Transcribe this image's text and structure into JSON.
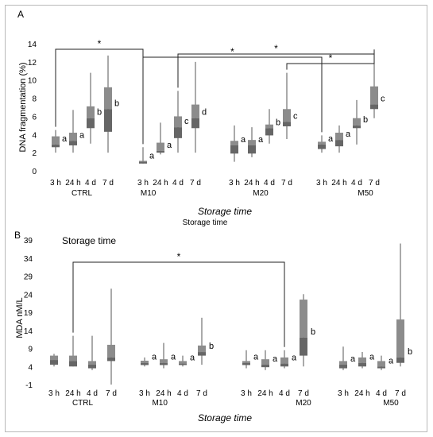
{
  "chart_data": [
    {
      "panel_label": "A",
      "type": "box",
      "ylabel": "DNA fragmentation (%)",
      "xlabel": "Storage time",
      "subtitle_below": "Storage time",
      "ylim": [
        0,
        14
      ],
      "yticks": [
        0,
        2,
        4,
        6,
        8,
        10,
        12,
        14
      ],
      "groups": [
        "CTRL",
        "M10",
        "M20",
        "M50"
      ],
      "timepoints": [
        "3 h",
        "24 h",
        "4 d",
        "7 d"
      ],
      "colors": {
        "box": "#8c8c8c",
        "box_dark": "#666666",
        "whisker": "#555555"
      },
      "boxes": [
        {
          "group": "CTRL",
          "time": "3 h",
          "min": 2.0,
          "q1": 2.6,
          "median": 2.9,
          "q3": 3.8,
          "max": 4.5,
          "letter": "a"
        },
        {
          "group": "CTRL",
          "time": "24 h",
          "min": 2.0,
          "q1": 2.8,
          "median": 3.3,
          "q3": 4.2,
          "max": 6.7,
          "letter": "a"
        },
        {
          "group": "CTRL",
          "time": "4 d",
          "min": 3.0,
          "q1": 4.7,
          "median": 5.8,
          "q3": 7.1,
          "max": 10.8,
          "letter": "b"
        },
        {
          "group": "CTRL",
          "time": "7 d",
          "min": 2.0,
          "q1": 4.3,
          "median": 6.8,
          "q3": 9.2,
          "max": 12.7,
          "letter": "b"
        },
        {
          "group": "M10",
          "time": "3 h",
          "min": 0.8,
          "q1": 0.8,
          "median": 1.0,
          "q3": 1.1,
          "max": 2.6,
          "letter": "a"
        },
        {
          "group": "M10",
          "time": "24 h",
          "min": 1.8,
          "q1": 2.0,
          "median": 2.2,
          "q3": 3.1,
          "max": 5.3,
          "letter": "a"
        },
        {
          "group": "M10",
          "time": "4 d",
          "min": 2.0,
          "q1": 3.6,
          "median": 4.8,
          "q3": 6.0,
          "max": 8.8,
          "letter": "c"
        },
        {
          "group": "M10",
          "time": "7 d",
          "min": 2.0,
          "q1": 4.7,
          "median": 5.8,
          "q3": 7.3,
          "max": 12.0,
          "letter": "d"
        },
        {
          "group": "M20",
          "time": "3 h",
          "min": 1.0,
          "q1": 1.9,
          "median": 2.8,
          "q3": 3.3,
          "max": 5.0,
          "letter": "a"
        },
        {
          "group": "M20",
          "time": "24 h",
          "min": 1.5,
          "q1": 1.9,
          "median": 2.8,
          "q3": 3.4,
          "max": 4.8,
          "letter": "a"
        },
        {
          "group": "M20",
          "time": "4 d",
          "min": 3.0,
          "q1": 3.9,
          "median": 4.7,
          "q3": 5.1,
          "max": 6.8,
          "letter": "b"
        },
        {
          "group": "M20",
          "time": "7 d",
          "min": 3.5,
          "q1": 4.9,
          "median": 5.4,
          "q3": 6.8,
          "max": 10.8,
          "letter": "c"
        },
        {
          "group": "M50",
          "time": "3 h",
          "min": 2.0,
          "q1": 2.4,
          "median": 2.9,
          "q3": 3.2,
          "max": 3.9,
          "letter": "a"
        },
        {
          "group": "M50",
          "time": "24 h",
          "min": 2.0,
          "q1": 2.7,
          "median": 3.4,
          "q3": 4.2,
          "max": 5.0,
          "letter": "a"
        },
        {
          "group": "M50",
          "time": "4 d",
          "min": 2.9,
          "q1": 4.7,
          "median": 5.0,
          "q3": 5.8,
          "max": 7.8,
          "letter": "b"
        },
        {
          "group": "M50",
          "time": "7 d",
          "min": 5.8,
          "q1": 6.8,
          "median": 7.3,
          "q3": 9.3,
          "max": 13.0,
          "letter": "c"
        }
      ],
      "significance": [
        {
          "label": "*",
          "from": "CTRL 3 h",
          "to": "M10 3 h"
        },
        {
          "label": "*",
          "from": "M10 3 h",
          "to": "M50 3 h"
        },
        {
          "label": "*",
          "from": "M10 4 d",
          "to": "M50 7 d"
        },
        {
          "label": "*",
          "from": "M20 7 d",
          "to": "M50 7 d"
        }
      ]
    },
    {
      "panel_label": "B",
      "type": "box",
      "ylabel": "MDA nM/L",
      "xlabel": "Storage time",
      "inset_title": "Storage time",
      "ylim": [
        -1,
        39
      ],
      "yticks": [
        -1,
        4,
        9,
        14,
        19,
        24,
        29,
        34,
        39
      ],
      "groups": [
        "CTRL",
        "M10",
        "M20",
        "M50"
      ],
      "timepoints": [
        "3 h",
        "24 h",
        "4 d",
        "7 d"
      ],
      "colors": {
        "box": "#8c8c8c",
        "box_dark": "#666666",
        "whisker": "#555555"
      },
      "boxes": [
        {
          "group": "CTRL",
          "time": "3 h",
          "min": 4.0,
          "q1": 4.5,
          "median": 5.8,
          "q3": 7.0,
          "max": 7.5,
          "letter": ""
        },
        {
          "group": "CTRL",
          "time": "24 h",
          "min": 4.0,
          "q1": 4.0,
          "median": 5.5,
          "q3": 7.0,
          "max": 12.5,
          "letter": ""
        },
        {
          "group": "CTRL",
          "time": "4 d",
          "min": 3.0,
          "q1": 3.5,
          "median": 4.5,
          "q3": 5.5,
          "max": 12.5,
          "letter": ""
        },
        {
          "group": "CTRL",
          "time": "7 d",
          "min": -1.0,
          "q1": 5.5,
          "median": 6.5,
          "q3": 10.0,
          "max": 25.5,
          "letter": ""
        },
        {
          "group": "M10",
          "time": "3 h",
          "min": 4.0,
          "q1": 4.4,
          "median": 5.0,
          "q3": 5.6,
          "max": 6.5,
          "letter": "a"
        },
        {
          "group": "M10",
          "time": "24 h",
          "min": 3.5,
          "q1": 4.4,
          "median": 5.0,
          "q3": 6.0,
          "max": 10.5,
          "letter": "a"
        },
        {
          "group": "M10",
          "time": "4 d",
          "min": 4.0,
          "q1": 4.4,
          "median": 4.8,
          "q3": 5.5,
          "max": 7.0,
          "letter": "a"
        },
        {
          "group": "M10",
          "time": "7 d",
          "min": 4.5,
          "q1": 7.0,
          "median": 8.0,
          "q3": 9.8,
          "max": 17.5,
          "letter": "b"
        },
        {
          "group": "M20",
          "time": "3 h",
          "min": 3.5,
          "q1": 4.4,
          "median": 5.0,
          "q3": 5.5,
          "max": 8.5,
          "letter": "a"
        },
        {
          "group": "M20",
          "time": "24 h",
          "min": 3.0,
          "q1": 3.8,
          "median": 4.5,
          "q3": 6.0,
          "max": 8.5,
          "letter": "a"
        },
        {
          "group": "M20",
          "time": "4 d",
          "min": 3.5,
          "q1": 4.0,
          "median": 4.8,
          "q3": 6.5,
          "max": 8.5,
          "letter": "a"
        },
        {
          "group": "M20",
          "time": "7 d",
          "min": 4.0,
          "q1": 7.0,
          "median": 12.0,
          "q3": 22.5,
          "max": 24.0,
          "letter": "b"
        },
        {
          "group": "M50",
          "time": "3 h",
          "min": 3.0,
          "q1": 3.5,
          "median": 4.5,
          "q3": 5.5,
          "max": 9.5,
          "letter": "a"
        },
        {
          "group": "M50",
          "time": "24 h",
          "min": 3.5,
          "q1": 4.0,
          "median": 5.0,
          "q3": 6.5,
          "max": 8.0,
          "letter": "a"
        },
        {
          "group": "M50",
          "time": "4 d",
          "min": 3.0,
          "q1": 3.5,
          "median": 4.0,
          "q3": 5.5,
          "max": 7.0,
          "letter": "a"
        },
        {
          "group": "M50",
          "time": "7 d",
          "min": 4.0,
          "q1": 5.0,
          "median": 6.5,
          "q3": 17.0,
          "max": 38.0,
          "letter": "b"
        }
      ],
      "significance": [
        {
          "label": "*",
          "from": "CTRL 24 h",
          "to": "M20 4 d"
        }
      ]
    }
  ]
}
